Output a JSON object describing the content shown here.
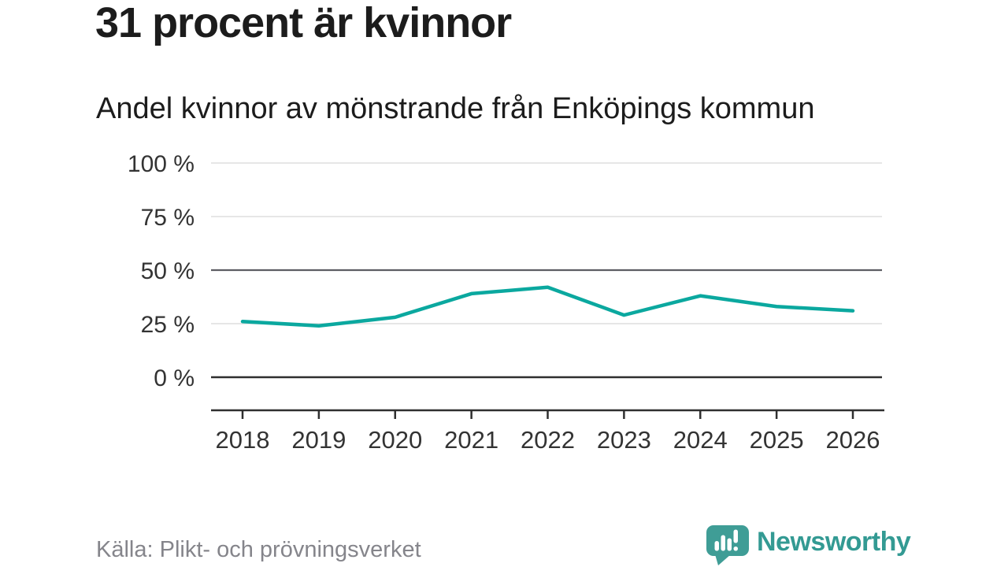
{
  "header": {
    "title": "31 procent är kvinnor"
  },
  "chart_data": {
    "type": "line",
    "title": "Andel kvinnor av mönstrande från Enköpings kommun",
    "x": [
      "2018",
      "2019",
      "2020",
      "2021",
      "2022",
      "2023",
      "2024",
      "2025",
      "2026"
    ],
    "series": [
      {
        "name": "Andel kvinnor av mönstrande",
        "color": "#0ba89f",
        "values": [
          26,
          24,
          28,
          39,
          42,
          29,
          38,
          33,
          31
        ]
      }
    ],
    "unit": "%",
    "xlabel": "",
    "ylabel": "",
    "ylim": [
      0,
      100
    ],
    "yticks": [
      100,
      75,
      50,
      25,
      0
    ],
    "ytick_labels": [
      "100 %",
      "75 %",
      "50 %",
      "25 %",
      "0 %"
    ],
    "emphasized_gridlines": [
      50,
      0
    ],
    "grid": true,
    "legend": "none"
  },
  "footer": {
    "source": "Källa: Plikt- och prövningsverket",
    "brand_name": "Newsworthy"
  },
  "colors": {
    "accent": "#0ba89f",
    "title_text": "#1c1c1c",
    "axis_label": "#333333",
    "gridline": "#e2e2e2",
    "gridline_mid": "#5d5e63",
    "axis": "#2f2f2f",
    "source_text": "#85858b",
    "brand_teal": "#339a93",
    "logo_teal": "#3f9d96"
  }
}
